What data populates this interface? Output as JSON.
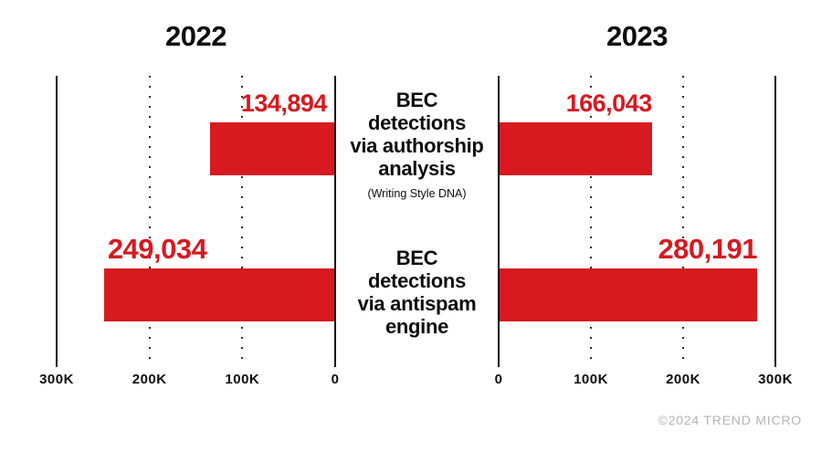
{
  "chart_data": {
    "type": "bar",
    "layout_hint": "two mirrored horizontal bar panels (tornado chart) sharing centered category labels; dotted gridlines at 100K/200K, solid axis lines at 0 and 300K",
    "panels": [
      {
        "title": "2022",
        "direction": "left",
        "xlim": [
          0,
          300000
        ],
        "axis_ticks": [
          "300K",
          "200K",
          "100K",
          "0"
        ],
        "values": [
          134894,
          249034
        ],
        "value_labels": [
          "134,894",
          "249,034"
        ]
      },
      {
        "title": "2023",
        "direction": "right",
        "xlim": [
          0,
          300000
        ],
        "axis_ticks": [
          "0",
          "100K",
          "200K",
          "300K"
        ],
        "values": [
          166043,
          280191
        ],
        "value_labels": [
          "166,043",
          "280,191"
        ]
      }
    ],
    "categories": [
      {
        "lines": [
          "BEC",
          "detections",
          "via authorship",
          "analysis"
        ],
        "subtitle": "(Writing Style DNA)"
      },
      {
        "lines": [
          "BEC",
          "detections",
          "via antispam",
          "engine"
        ],
        "subtitle": ""
      }
    ]
  },
  "colors": {
    "bar": "#d71920",
    "value_label": "#d71920",
    "axis": "#111111",
    "text": "#0d0d0d",
    "footer_gray": "#b5b5b5"
  },
  "footer": {
    "copyright": "©2024 TREND MICRO"
  }
}
